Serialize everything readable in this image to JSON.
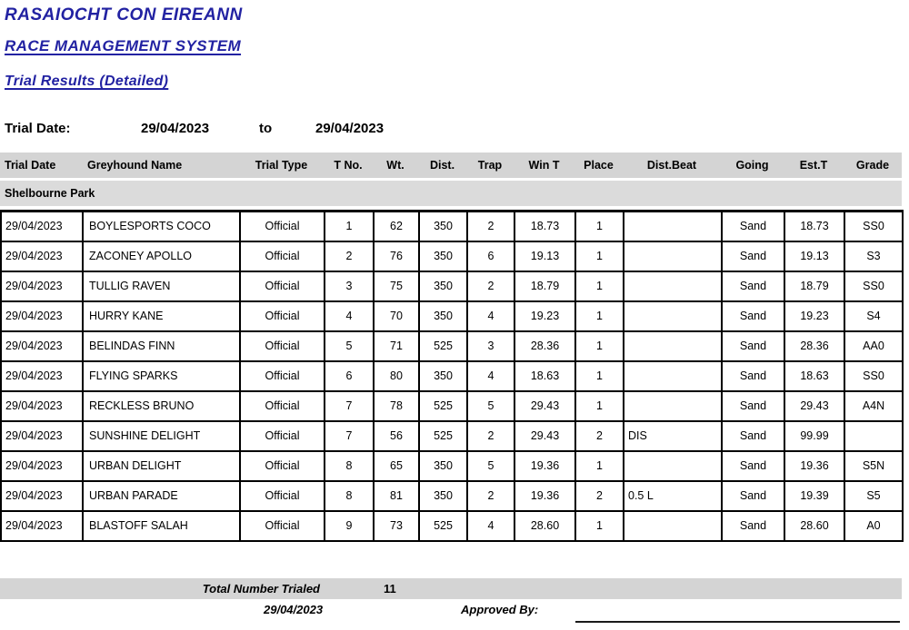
{
  "header": {
    "org_title": "RASAIOCHT CON EIREANN",
    "system_title": "RACE MANAGEMENT SYSTEM",
    "report_title": "Trial Results (Detailed)",
    "trial_date_label": "Trial Date:",
    "date_from": "29/04/2023",
    "to_label": "to",
    "date_to": "29/04/2023"
  },
  "table": {
    "columns": [
      "Trial Date",
      "Greyhound Name",
      "Trial Type",
      "T No.",
      "Wt.",
      "Dist.",
      "Trap",
      "Win T",
      "Place",
      "Dist.Beat",
      "Going",
      "Est.T",
      "Grade"
    ],
    "track_group": "Shelbourne Park",
    "rows": [
      [
        "29/04/2023",
        "BOYLESPORTS COCO",
        "Official",
        "1",
        "62",
        "350",
        "2",
        "18.73",
        "1",
        "",
        "Sand",
        "18.73",
        "SS0"
      ],
      [
        "29/04/2023",
        "ZACONEY APOLLO",
        "Official",
        "2",
        "76",
        "350",
        "6",
        "19.13",
        "1",
        "",
        "Sand",
        "19.13",
        "S3"
      ],
      [
        "29/04/2023",
        "TULLIG RAVEN",
        "Official",
        "3",
        "75",
        "350",
        "2",
        "18.79",
        "1",
        "",
        "Sand",
        "18.79",
        "SS0"
      ],
      [
        "29/04/2023",
        "HURRY KANE",
        "Official",
        "4",
        "70",
        "350",
        "4",
        "19.23",
        "1",
        "",
        "Sand",
        "19.23",
        "S4"
      ],
      [
        "29/04/2023",
        "BELINDAS FINN",
        "Official",
        "5",
        "71",
        "525",
        "3",
        "28.36",
        "1",
        "",
        "Sand",
        "28.36",
        "AA0"
      ],
      [
        "29/04/2023",
        "FLYING SPARKS",
        "Official",
        "6",
        "80",
        "350",
        "4",
        "18.63",
        "1",
        "",
        "Sand",
        "18.63",
        "SS0"
      ],
      [
        "29/04/2023",
        "RECKLESS BRUNO",
        "Official",
        "7",
        "78",
        "525",
        "5",
        "29.43",
        "1",
        "",
        "Sand",
        "29.43",
        "A4N"
      ],
      [
        "29/04/2023",
        "SUNSHINE DELIGHT",
        "Official",
        "7",
        "56",
        "525",
        "2",
        "29.43",
        "2",
        "DIS",
        "Sand",
        "99.99",
        ""
      ],
      [
        "29/04/2023",
        "URBAN DELIGHT",
        "Official",
        "8",
        "65",
        "350",
        "5",
        "19.36",
        "1",
        "",
        "Sand",
        "19.36",
        "S5N"
      ],
      [
        "29/04/2023",
        "URBAN PARADE",
        "Official",
        "8",
        "81",
        "350",
        "2",
        "19.36",
        "2",
        "0.5 L",
        "Sand",
        "19.39",
        "S5"
      ],
      [
        "29/04/2023",
        "BLASTOFF SALAH",
        "Official",
        "9",
        "73",
        "525",
        "4",
        "28.60",
        "1",
        "",
        "Sand",
        "28.60",
        "A0"
      ]
    ]
  },
  "footer": {
    "total_label": "Total Number Trialed",
    "total_value": "11",
    "report_date": "29/04/2023",
    "approved_by_label": "Approved By:"
  },
  "colors": {
    "heading_blue": "#2222a2",
    "column_header_gray": "#d4d4d4",
    "track_band_gray": "#dbdbdb",
    "footer_bar_gray": "#d4d4d4"
  }
}
